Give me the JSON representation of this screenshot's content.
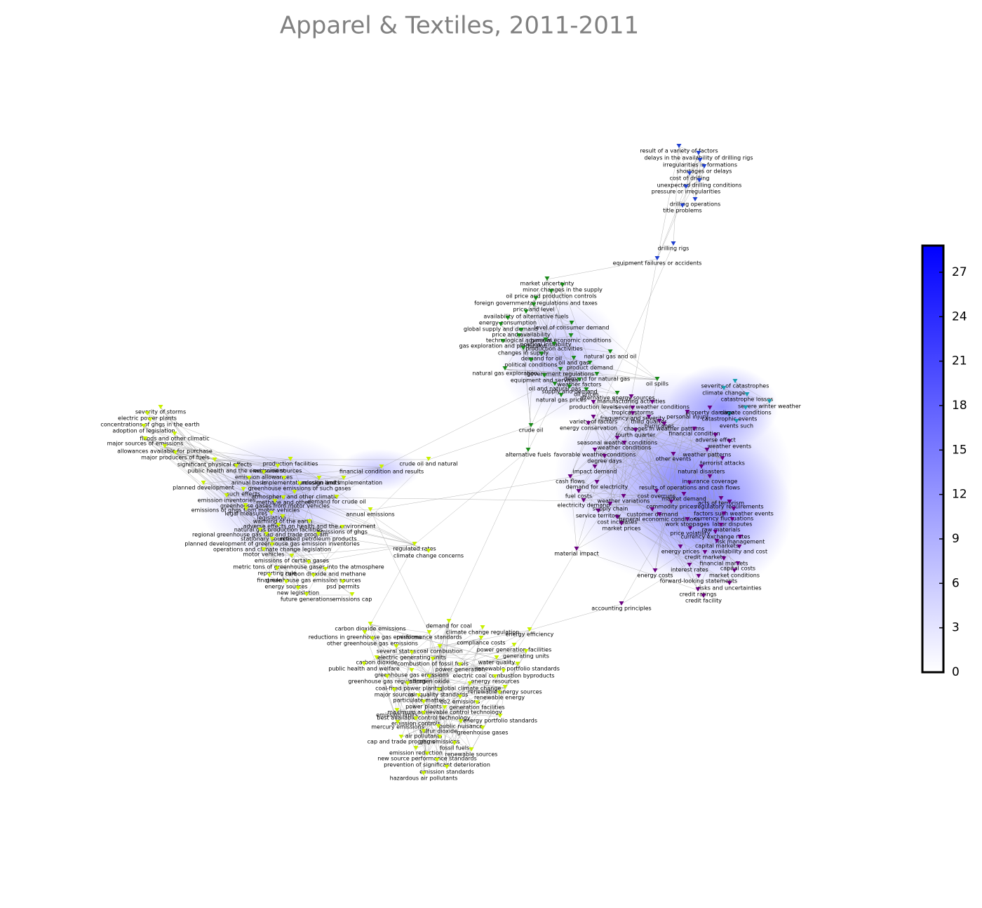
{
  "chart_data": {
    "type": "network",
    "title": "Apparel & Textiles, 2011-2011",
    "colorbar": {
      "ylim": [
        0,
        28.8
      ],
      "yticks": [
        0,
        3,
        6,
        9,
        12,
        15,
        18,
        21,
        24,
        27
      ],
      "colors": [
        "#ffffff",
        "#0000ff"
      ]
    },
    "clusters": [
      {
        "color": "#2040d0",
        "nodes": [
          "result of a variety of factors",
          "delays in the availability of drilling rigs",
          "irregularities in formations",
          "shortages or delays",
          "cost of drilling",
          "unexpected drilling conditions",
          "pressure or irregularities",
          "drilling operations",
          "title problems",
          "drilling rigs",
          "equipment failures or accidents"
        ]
      },
      {
        "color": "#1a8a1a",
        "nodes": [
          "market uncertainty",
          "minor changes in the supply",
          "oil price and production controls",
          "foreign governmental regulations and taxes",
          "price and level",
          "availability of alternative fuels",
          "energy consumption",
          "level of consumer demand",
          "global supply and demand",
          "price and availability",
          "technological advances",
          "general economic conditions",
          "political instability",
          "gas exploration and production",
          "production activities",
          "changes in supply",
          "demand for oil",
          "natural gas and oil",
          "oil and gas",
          "political conditions",
          "product demand",
          "natural gas exploration",
          "government regulations",
          "equipment and services",
          "demand for natural gas",
          "oil spills",
          "weather factors",
          "oil and natural gas",
          "supply and demand",
          "oil prices",
          "natural gas prices",
          "alternative energy sources",
          "crude oil",
          "alternative fuels"
        ]
      },
      {
        "color": "#1aa0b0",
        "nodes": [
          "severity of catastrophes",
          "climate change",
          "catastrophe losses",
          "severe winter weather",
          "climate conditions",
          "catastrophic events",
          "events such"
        ]
      },
      {
        "color": "#6a0080",
        "nodes": [
          "manufacturing activities",
          "production levels",
          "severe weather conditions",
          "tropical storms",
          "property damage",
          "frequency and severity",
          "personal injury",
          "third quarter",
          "variety of factors",
          "hurricanes",
          "energy conservation",
          "changes in weather patterns",
          "financial condition",
          "fourth quarter",
          "seasonal weather conditions",
          "adverse effect",
          "weather conditions",
          "weather events",
          "favorable weather conditions",
          "weather patterns",
          "other events",
          "terrorist attacks",
          "degree days",
          "impact demand",
          "natural disasters",
          "cash flows",
          "insurance coverage",
          "demand for electricity",
          "results of operations and cash flows",
          "fuel costs",
          "cost overruns",
          "market demand",
          "weather variations",
          "acts of terrorism",
          "electricity demand",
          "commodity prices",
          "regulatory requirements",
          "supply chain",
          "factors such weather events",
          "service territory",
          "customer demand",
          "general economic conditions",
          "currency fluctuations",
          "cost increases",
          "work stoppages",
          "labor disputes",
          "market prices",
          "raw materials",
          "price volatility",
          "currency exchange rates",
          "risk management",
          "capital markets",
          "material impact",
          "energy prices",
          "availability and cost",
          "credit markets",
          "financial markets",
          "interest rates",
          "capital costs",
          "energy costs",
          "market conditions",
          "forward-looking statements",
          "risks and uncertainties",
          "credit ratings",
          "credit facility",
          "accounting principles"
        ]
      },
      {
        "color": "#c8f000",
        "nodes": [
          "severity of storms",
          "electric power plants",
          "concentrations of ghgs in the earth",
          "adoption of legislation",
          "floods and other climatic",
          "major sources of emissions",
          "allowances available for purchase",
          "major producers of fuels",
          "significant physical effects",
          "production facilities",
          "public health and the environment",
          "emission sources",
          "crude oil and natural",
          "financial condition and results",
          "emission allowances",
          "annual basis",
          "implementation",
          "design and implementation",
          "emission limits",
          "planned development",
          "greenhouse emissions of such gases",
          "such effects",
          "atmosphere and other climatic",
          "emission inventories",
          "methane and other",
          "demand for crude oil",
          "greenhouse gases from motor vehicles",
          "emissions of ghgs from motor vehicles",
          "legal measures",
          "annual emissions",
          "legislation",
          "warming of the earth",
          "adverse effects on health and the environment",
          "natural gas production facilities",
          "emissions of ghgs",
          "regional greenhouse gas cap and trade program",
          "stationary sources",
          "refined petroleum products",
          "planned development of greenhouse gas emission inventories",
          "operations and climate change legislation",
          "regulated rates",
          "motor vehicles",
          "climate change concerns",
          "emissions of certain gases",
          "metric tons of greenhouse gases into the atmosphere",
          "reporting rule",
          "carbon dioxide and methane",
          "greenhouse gas emission sources",
          "final rule",
          "energy sources",
          "psd permits",
          "new legislation",
          "future generations",
          "emissions cap"
        ]
      },
      {
        "color": "#c8f000",
        "nodes": [
          "carbon dioxide emissions",
          "demand for coal",
          "climate change regulation",
          "energy efficiency",
          "reductions in greenhouse gas emissions",
          "performance standards",
          "other greenhouse gas emissions",
          "compliance costs",
          "several states",
          "coal combustion",
          "power generation facilities",
          "electric generating units",
          "generating units",
          "carbon dioxide",
          "combustion of fossil fuels",
          "water quality",
          "public health and welfare",
          "power generation",
          "renewable portfolio standards",
          "greenhouse gas emissions",
          "electric coal combustion byproducts",
          "greenhouse gas regulations",
          "nitrogen oxide",
          "energy resources",
          "coal-fired power plants",
          "global climate change",
          "major sources",
          "air quality standards",
          "renewable energy sources",
          "particulate matter",
          "co2 emissions",
          "renewable energy",
          "power plants",
          "generation facilities",
          "maximum achievable control technology",
          "emission limits",
          "best available control technology",
          "energy portfolio standards",
          "emission controls",
          "mercury emissions",
          "public nuisance",
          "sulfur dioxide",
          "greenhouse gases",
          "air pollutants",
          "cap and trade programs",
          "ghg emissions",
          "fossil fuels",
          "emission reduction",
          "renewable sources",
          "new source performance standards",
          "prevention of significant deterioration",
          "emission standards",
          "hazardous air pollutants"
        ]
      }
    ]
  }
}
